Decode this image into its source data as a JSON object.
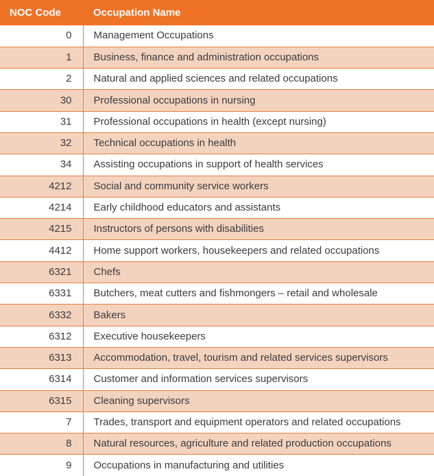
{
  "colors": {
    "header_bg": "#EF7226",
    "header_text": "#FFFFFF",
    "row_bg": "#FFFFFF",
    "row_alt_bg": "#F3D3BE",
    "border": "#E67E3C",
    "text": "#3B3B41"
  },
  "table": {
    "columns": [
      {
        "label": "NOC Code"
      },
      {
        "label": "Occupation Name"
      }
    ],
    "rows": [
      {
        "code": "0",
        "name": "Management Occupations"
      },
      {
        "code": "1",
        "name": "Business, finance and administration occupations"
      },
      {
        "code": "2",
        "name": "Natural and applied sciences and related occupations"
      },
      {
        "code": "30",
        "name": "Professional occupations in nursing"
      },
      {
        "code": "31",
        "name": "Professional occupations in health (except nursing)"
      },
      {
        "code": "32",
        "name": "Technical occupations in health"
      },
      {
        "code": "34",
        "name": "Assisting occupations in support of health services"
      },
      {
        "code": "4212",
        "name": "Social and community service workers"
      },
      {
        "code": "4214",
        "name": "Early childhood educators and assistants"
      },
      {
        "code": "4215",
        "name": "Instructors of persons with disabilities"
      },
      {
        "code": "4412",
        "name": "Home support workers, housekeepers and related occupations"
      },
      {
        "code": "6321",
        "name": "Chefs"
      },
      {
        "code": "6331",
        "name": "Butchers, meat cutters and fishmongers – retail and wholesale"
      },
      {
        "code": "6332",
        "name": "Bakers"
      },
      {
        "code": "6312",
        "name": "Executive housekeepers"
      },
      {
        "code": "6313",
        "name": "Accommodation, travel, tourism and related services supervisors"
      },
      {
        "code": "6314",
        "name": "Customer and information services supervisors"
      },
      {
        "code": "6315",
        "name": "Cleaning supervisors"
      },
      {
        "code": "7",
        "name": "Trades, transport and equipment operators and related occupations"
      },
      {
        "code": "8",
        "name": "Natural resources, agriculture and related production occupations"
      },
      {
        "code": "9",
        "name": "Occupations in manufacturing and utilities"
      }
    ]
  }
}
